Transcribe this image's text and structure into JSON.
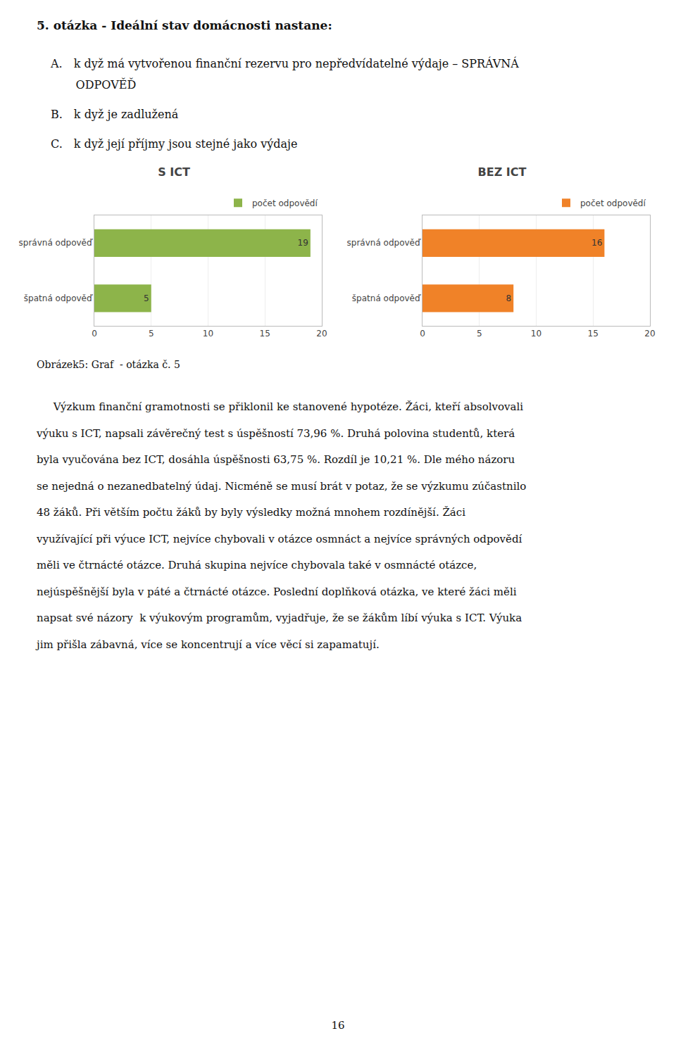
{
  "heading": "5. otázka - Ideální stav domácnosti nastane:",
  "items": [
    [
      "A. k dyž má vytvořenou finanční rezervu pro nepředvídatelné výdaje – SPRÁVNÁ",
      "       ODPOVĚĎ"
    ],
    [
      "B. k dyž je zadlužená"
    ],
    [
      "C. k dyž její příjmy jsou stejné jako výdaje"
    ]
  ],
  "chart_data": [
    {
      "type": "bar",
      "orientation": "horizontal",
      "title": "S ICT",
      "categories": [
        "správná odpověď",
        "špatná odpověď"
      ],
      "series": [
        {
          "name": "počet odpovědí",
          "color": "#8db44a",
          "values": [
            19,
            5
          ]
        }
      ],
      "xlim": [
        0,
        20
      ],
      "xticks": [
        0,
        5,
        10,
        15,
        20
      ],
      "grid": true,
      "legend": "upper right",
      "data_labels": true
    },
    {
      "type": "bar",
      "orientation": "horizontal",
      "title": "BEZ ICT",
      "categories": [
        "správná odpověď",
        "špatná odpověď"
      ],
      "series": [
        {
          "name": "počet odpovědí",
          "color": "#f08228",
          "values": [
            16,
            8
          ]
        }
      ],
      "xlim": [
        0,
        20
      ],
      "xticks": [
        0,
        5,
        10,
        15,
        20
      ],
      "grid": true,
      "legend": "upper right",
      "data_labels": true
    }
  ],
  "caption": "Obrázek5: Graf  - otázka č. 5",
  "body_lines": [
    "     Výzkum finanční gramotnosti se přiklonil ke stanovené hypotéze. Žáci, kteří absolvovali",
    "výuku s ICT, napsali závěrečný test s úspěšností 73,96 %. Druhá polovina studentů, která",
    "byla vyučována bez ICT, dosáhla úspěšnosti 63,75 %. Rozdíl je 10,21 %. Dle mého názoru",
    "se nejedná o nezanedbatelný údaj. Nicméně se musí brát v potaz, že se výzkumu zúčastnilo",
    "48 žáků. Při větším počtu žáků by byly výsledky možná mnohem rozdínější. Žáci",
    "využívající při výuce ICT, nejvíce chybovali v otázce osmnáct a nejvíce správných odpovědí",
    "měli ve čtrnácté otázce. Druhá skupina nejvíce chybovala také v osmnácté otázce,",
    "nejúspěšnější byla v páté a čtrnácté otázce. Poslední doplňková otázka, ve které žáci měli",
    "napsat své názory  k výukovým programům, vyjadřuje, že se žákům líbí výuka s ICT. Výuka",
    "jim přišla zábavná, více se koncentrují a více věcí si zapamatují."
  ],
  "page_number": "16"
}
